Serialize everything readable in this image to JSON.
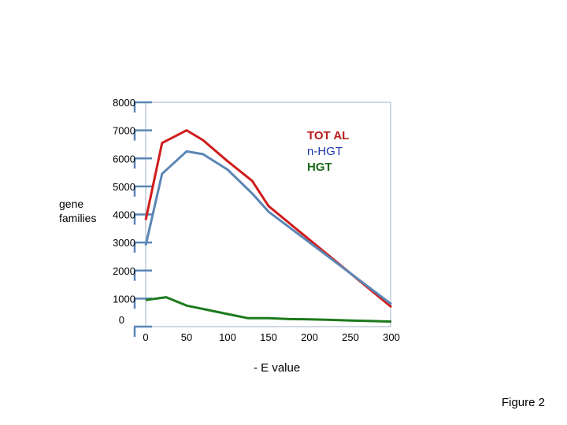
{
  "chart_data": {
    "type": "line",
    "title": "",
    "xlabel": "- E value",
    "ylabel": "gene families",
    "x_ticks": [
      "0",
      "50",
      "100",
      "150",
      "200",
      "250",
      "300"
    ],
    "y_ticks": [
      "8000",
      "7000",
      "6000",
      "5000",
      "4000",
      "3000",
      "2000",
      "1000",
      "0"
    ],
    "xlim": [
      0,
      300
    ],
    "ylim": [
      0,
      8000
    ],
    "x": [
      0,
      20,
      50,
      70,
      100,
      130,
      150,
      300
    ],
    "series": [
      {
        "name": "TOT AL",
        "color": "#d01c1c",
        "values": [
          3800,
          6550,
          7000,
          6650,
          5900,
          5200,
          4300,
          700
        ]
      },
      {
        "name": "n-HGT",
        "color": "#5b86b5",
        "values": [
          2900,
          5450,
          6250,
          6150,
          5600,
          4750,
          4100,
          800
        ]
      },
      {
        "name": "HGT",
        "color": "#1c7a1c",
        "x": [
          0,
          25,
          50,
          75,
          100,
          125,
          150,
          175,
          200,
          225,
          250,
          275,
          300
        ],
        "values": [
          950,
          1050,
          750,
          600,
          450,
          300,
          300,
          270,
          260,
          240,
          220,
          200,
          180
        ]
      }
    ],
    "legend": [
      "TOT AL",
      "n-HGT",
      "HGT"
    ],
    "legend_position": "top-right"
  },
  "figure_caption": "Figure 2"
}
